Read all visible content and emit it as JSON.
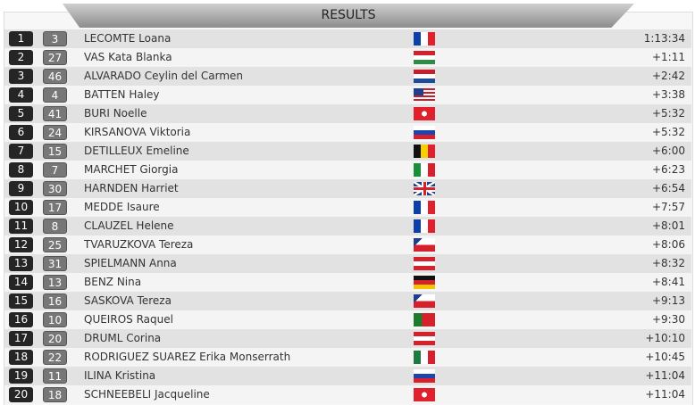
{
  "title": "RESULTS",
  "rows": [
    {
      "rank": "1",
      "bib": "3",
      "name": "LECOMTE Loana",
      "flag": "FRA",
      "time": "1:13:34"
    },
    {
      "rank": "2",
      "bib": "27",
      "name": "VAS Kata Blanka",
      "flag": "HUN",
      "time": "+1:11"
    },
    {
      "rank": "3",
      "bib": "46",
      "name": "ALVARADO Ceylin del Carmen",
      "flag": "NED",
      "time": "+2:42"
    },
    {
      "rank": "4",
      "bib": "4",
      "name": "BATTEN Haley",
      "flag": "USA",
      "time": "+3:38"
    },
    {
      "rank": "5",
      "bib": "41",
      "name": "BURI Noelle",
      "flag": "SUI",
      "time": "+5:32"
    },
    {
      "rank": "6",
      "bib": "24",
      "name": "KIRSANOVA Viktoria",
      "flag": "RUS",
      "time": "+5:32"
    },
    {
      "rank": "7",
      "bib": "15",
      "name": "DETILLEUX Emeline",
      "flag": "BEL",
      "time": "+6:00"
    },
    {
      "rank": "8",
      "bib": "7",
      "name": "MARCHET Giorgia",
      "flag": "ITA",
      "time": "+6:23"
    },
    {
      "rank": "9",
      "bib": "30",
      "name": "HARNDEN Harriet",
      "flag": "GBR",
      "time": "+6:54"
    },
    {
      "rank": "10",
      "bib": "17",
      "name": "MEDDE Isaure",
      "flag": "FRA",
      "time": "+7:57"
    },
    {
      "rank": "11",
      "bib": "8",
      "name": "CLAUZEL Helene",
      "flag": "FRA",
      "time": "+8:01"
    },
    {
      "rank": "12",
      "bib": "25",
      "name": "TVARUZKOVA Tereza",
      "flag": "CZE",
      "time": "+8:06"
    },
    {
      "rank": "13",
      "bib": "31",
      "name": "SPIELMANN Anna",
      "flag": "AUT",
      "time": "+8:32"
    },
    {
      "rank": "14",
      "bib": "13",
      "name": "BENZ Nina",
      "flag": "GER",
      "time": "+8:41"
    },
    {
      "rank": "15",
      "bib": "16",
      "name": "SASKOVA Tereza",
      "flag": "CZE",
      "time": "+9:13"
    },
    {
      "rank": "16",
      "bib": "10",
      "name": "QUEIROS Raquel",
      "flag": "POR",
      "time": "+9:30"
    },
    {
      "rank": "17",
      "bib": "20",
      "name": "DRUML Corina",
      "flag": "AUT",
      "time": "+10:10"
    },
    {
      "rank": "18",
      "bib": "22",
      "name": "RODRIGUEZ SUAREZ Erika Monserrath",
      "flag": "MEX",
      "time": "+10:45"
    },
    {
      "rank": "19",
      "bib": "11",
      "name": "ILINA Kristina",
      "flag": "RUS",
      "time": "+11:04"
    },
    {
      "rank": "20",
      "bib": "18",
      "name": "SCHNEEBELI Jacqueline",
      "flag": "SUI",
      "time": "+11:04"
    }
  ]
}
